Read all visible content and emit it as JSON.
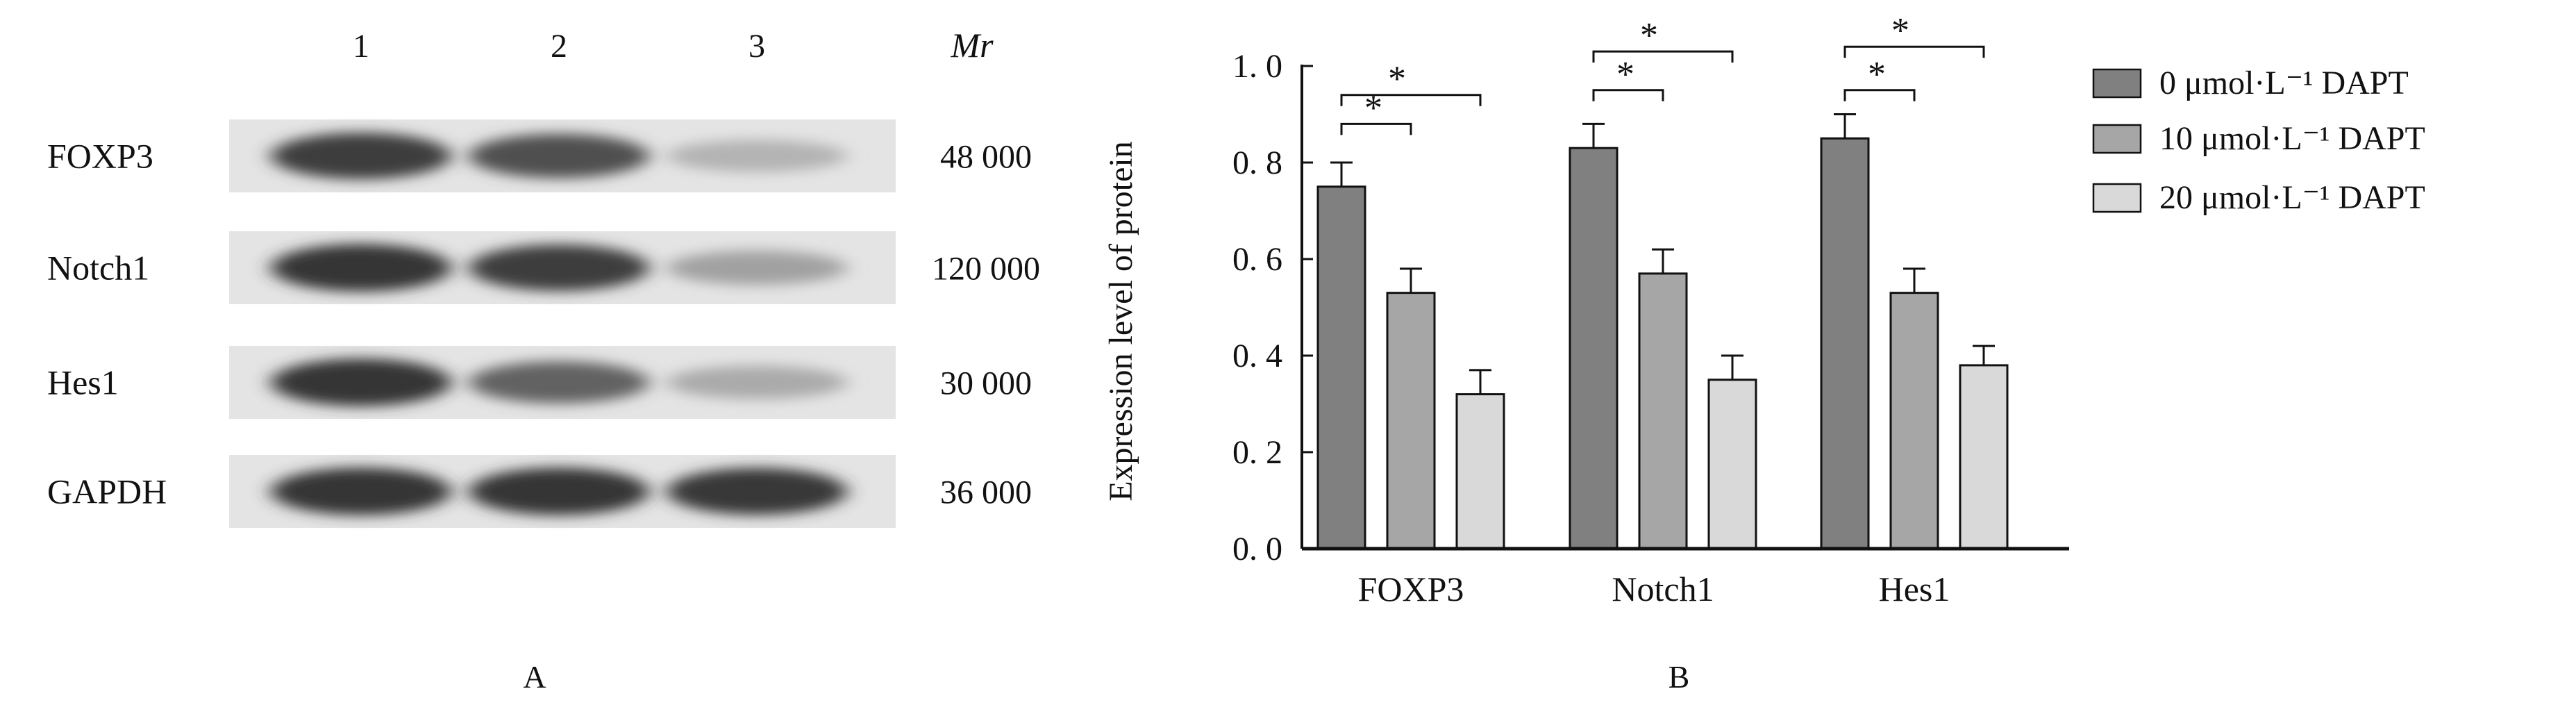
{
  "blot": {
    "lanes": [
      "1",
      "2",
      "3"
    ],
    "mr_header": "Mr",
    "proteins": [
      {
        "name": "FOXP3",
        "mr": "48 000",
        "band_intensity": [
          0.85,
          0.75,
          0.2
        ]
      },
      {
        "name": "Notch1",
        "mr": "120 000",
        "band_intensity": [
          0.9,
          0.85,
          0.3
        ]
      },
      {
        "name": "Hes1",
        "mr": "30 000",
        "band_intensity": [
          0.9,
          0.65,
          0.25
        ]
      },
      {
        "name": "GAPDH",
        "mr": "36 000",
        "band_intensity": [
          0.9,
          0.9,
          0.88
        ]
      }
    ],
    "panel_label": "A"
  },
  "chart_data": {
    "type": "bar",
    "panel_label": "B",
    "categories": [
      "FOXP3",
      "Notch1",
      "Hes1"
    ],
    "ylabel": "Expression level of protein",
    "ylim": [
      0,
      1.0
    ],
    "yticks": [
      "0. 0",
      "0. 2",
      "0. 4",
      "0. 6",
      "0. 8",
      "1. 0"
    ],
    "grid": false,
    "legend_position": "right",
    "series": [
      {
        "name": "0 μmol·L⁻¹ DAPT",
        "values": [
          0.75,
          0.83,
          0.85
        ],
        "errors": [
          0.05,
          0.05,
          0.05
        ],
        "color": "#808080"
      },
      {
        "name": "10 μmol·L⁻¹ DAPT",
        "values": [
          0.53,
          0.57,
          0.53
        ],
        "errors": [
          0.05,
          0.05,
          0.05
        ],
        "color": "#a6a6a6"
      },
      {
        "name": "20 μmol·L⁻¹ DAPT",
        "values": [
          0.32,
          0.35,
          0.38
        ],
        "errors": [
          0.05,
          0.05,
          0.04
        ],
        "color": "#d9d9d9"
      }
    ],
    "significance": [
      {
        "category": 0,
        "from": 0,
        "to": 1,
        "y": 0.88,
        "label": "*"
      },
      {
        "category": 0,
        "from": 0,
        "to": 2,
        "y": 0.94,
        "label": "*"
      },
      {
        "category": 1,
        "from": 0,
        "to": 1,
        "y": 0.95,
        "label": "*"
      },
      {
        "category": 1,
        "from": 0,
        "to": 2,
        "y": 1.03,
        "label": "*"
      },
      {
        "category": 2,
        "from": 0,
        "to": 1,
        "y": 0.95,
        "label": "*"
      },
      {
        "category": 2,
        "from": 0,
        "to": 2,
        "y": 1.04,
        "label": "*"
      }
    ]
  }
}
